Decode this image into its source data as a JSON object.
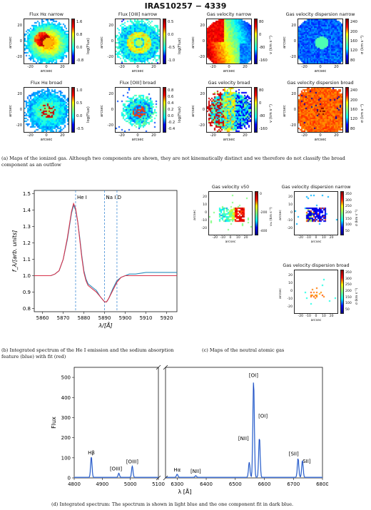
{
  "figure_title": "IRAS10257 − 4339",
  "panel_a": {
    "maps": [
      {
        "title": "Flux Hα narrow",
        "cbar_label": "log(Flux)",
        "cbar_ticks": [
          "1.6",
          "0.8",
          "0.0",
          "-0.8"
        ],
        "cmap": "jet",
        "style": "flux_big"
      },
      {
        "title": "Flux [OIII] narrow",
        "cbar_label": "log(Flux)",
        "cbar_ticks": [
          "0.5",
          "0.0",
          "-0.5",
          "-1.0"
        ],
        "cmap": "jet",
        "style": "flux_ring"
      },
      {
        "title": "Gas velocity narrow",
        "cbar_label": "v (km s⁻¹)",
        "cbar_ticks": [
          "80",
          "0",
          "-80",
          "-160"
        ],
        "cmap": "jet",
        "style": "vel_narrow"
      },
      {
        "title": "Gas velocity dispersion narrow",
        "cbar_label": "σ (km s⁻¹)",
        "cbar_ticks": [
          "240",
          "200",
          "160",
          "120",
          "80"
        ],
        "cmap": "jet",
        "style": "disp_narrow"
      },
      {
        "title": "Flux Hα broad",
        "cbar_label": "log(Flux)",
        "cbar_ticks": [
          "1.0",
          "0.5",
          "0.0",
          "-0.5"
        ],
        "cmap": "jet",
        "style": "flux_broad"
      },
      {
        "title": "Flux [OIII] broad",
        "cbar_label": "log(Flux)",
        "cbar_ticks": [
          "0.8",
          "0.6",
          "0.4",
          "0.2",
          "0.0",
          "-0.2",
          "-0.4"
        ],
        "cmap": "jet",
        "style": "flux_small"
      },
      {
        "title": "Gas velocity broad",
        "cbar_label": "v (km s⁻¹)",
        "cbar_ticks": [
          "80",
          "0",
          "-80",
          "-160"
        ],
        "cmap": "jet",
        "style": "vel_broad"
      },
      {
        "title": "Gas velocity dispersion broad",
        "cbar_label": "σ (km s⁻¹)",
        "cbar_ticks": [
          "240",
          "200",
          "160",
          "120",
          "80"
        ],
        "cmap": "jet",
        "style": "disp_broad"
      }
    ],
    "x_ticks": [
      "-20",
      "0",
      "20"
    ],
    "y_ticks": [
      "20",
      "0",
      "-20"
    ],
    "xlabel": "arcsec",
    "ylabel": "arcsec",
    "caption": "(a) Maps of the ionized gas. Although two components are shown, they are not kinematically distinct and we therefore do not classify the broad component as an outflow"
  },
  "panel_b": {
    "caption": "(b) Integrated spectrum of the He I emission and the sodium absorption feature (blue) with fit (red)",
    "line_labels": [
      "He I",
      "Na I D"
    ],
    "colors": {
      "data": "#2a8fbd",
      "fit": "#d8324a",
      "marker": "#2a7fd0"
    }
  },
  "panel_c": {
    "caption": "(c) Maps of the neutral atomic gas",
    "maps": [
      {
        "title": "Gas velocity v50",
        "cbar_label": "v₅₀ (km s⁻¹)",
        "cbar_ticks": [
          "0",
          "-200",
          "-400"
        ],
        "x_ticks": [
          "-20",
          "-10",
          "0",
          "10",
          "20"
        ],
        "y_ticks": [
          "20",
          "10",
          "0",
          "-10",
          "-20"
        ]
      },
      {
        "title": "Gas velocity dispersion narrow",
        "cbar_label": "σ (km s⁻¹)",
        "cbar_ticks": [
          "350",
          "300",
          "250",
          "200",
          "150",
          "100",
          "50"
        ],
        "x_ticks": [
          "-20",
          "-10",
          "0",
          "10",
          "20"
        ],
        "y_ticks": [
          "20",
          "10",
          "0",
          "-10",
          "-20"
        ]
      },
      {
        "title": "Gas velocity dispersion broad",
        "cbar_label": "σ (km s⁻¹)",
        "cbar_ticks": [
          "350",
          "300",
          "250",
          "200",
          "150",
          "100",
          "50"
        ],
        "x_ticks": [
          "-20",
          "-10",
          "0",
          "10",
          "20"
        ],
        "y_ticks": [
          "20",
          "10",
          "0",
          "-10",
          "-20"
        ]
      }
    ],
    "xlabel": "arcsec",
    "ylabel": "arcsec"
  },
  "panel_d": {
    "caption": "(d) Integrated spectrum: The spectrum is shown in light blue and the one component fit in dark blue.",
    "line_labels": [
      "Hβ",
      "[OIII]",
      "[OIII]",
      "Hα",
      "[NII]",
      "[NII]",
      "[OI]",
      "[OI]",
      "[SII]",
      "SII]"
    ]
  },
  "chart_data": [
    {
      "type": "line",
      "title": "",
      "xlabel": "λ/[Å]",
      "ylabel": "f_λ/[arb. units]",
      "xlim": [
        5856,
        5925
      ],
      "ylim": [
        0.78,
        1.52
      ],
      "x_ticks": [
        5860,
        5870,
        5880,
        5890,
        5900,
        5910,
        5920
      ],
      "y_ticks": [
        0.8,
        0.9,
        1.0,
        1.1,
        1.2,
        1.3,
        1.4,
        1.5
      ],
      "vlines": [
        {
          "x": 5876,
          "label": "He I"
        },
        {
          "x": 5890,
          "label": "Na I D"
        },
        {
          "x": 5896,
          "label": ""
        }
      ],
      "series": [
        {
          "x": [
            5856,
            5860,
            5864,
            5866,
            5868,
            5870,
            5872,
            5873,
            5874,
            5875,
            5876,
            5877,
            5878,
            5879,
            5880,
            5881,
            5882,
            5884,
            5886,
            5888,
            5890,
            5891,
            5892,
            5894,
            5896,
            5898,
            5900,
            5902,
            5905,
            5910,
            5915,
            5920,
            5925
          ],
          "y": [
            1.0,
            1.0,
            1.0,
            1.01,
            1.03,
            1.1,
            1.22,
            1.3,
            1.38,
            1.43,
            1.4,
            1.33,
            1.23,
            1.12,
            1.03,
            0.98,
            0.95,
            0.93,
            0.91,
            0.87,
            0.84,
            0.84,
            0.86,
            0.92,
            0.97,
            0.99,
            1.0,
            1.01,
            1.01,
            1.02,
            1.02,
            1.02,
            1.02
          ]
        },
        {
          "x": [
            5856,
            5860,
            5864,
            5866,
            5868,
            5870,
            5872,
            5873,
            5874,
            5875,
            5876,
            5877,
            5878,
            5879,
            5880,
            5881,
            5882,
            5884,
            5886,
            5888,
            5890,
            5891,
            5892,
            5894,
            5896,
            5898,
            5900,
            5902,
            5905,
            5910,
            5915,
            5920,
            5925
          ],
          "y": [
            1.0,
            1.0,
            1.0,
            1.01,
            1.03,
            1.1,
            1.23,
            1.31,
            1.39,
            1.44,
            1.41,
            1.33,
            1.22,
            1.11,
            1.02,
            0.97,
            0.94,
            0.92,
            0.9,
            0.87,
            0.84,
            0.84,
            0.86,
            0.91,
            0.96,
            0.99,
            1.0,
            1.0,
            1.0,
            1.0,
            1.0,
            1.0,
            1.0
          ]
        }
      ]
    },
    {
      "type": "line",
      "title": "",
      "xlabel": "λ [Å]",
      "ylabel": "Flux",
      "ylim": [
        0,
        550
      ],
      "y_ticks": [
        0,
        100,
        200,
        300,
        400,
        500
      ],
      "segments": [
        {
          "xlim": [
            4800,
            5100
          ],
          "x_ticks": [
            4800,
            4900,
            5000,
            5100
          ]
        },
        {
          "xlim": [
            6260,
            6800
          ],
          "x_ticks": [
            6300,
            6400,
            6500,
            6600,
            6700,
            6800
          ]
        }
      ],
      "lines": [
        {
          "x": 4861,
          "peak": 100,
          "label": "Hβ"
        },
        {
          "x": 4959,
          "peak": 20,
          "label": "[OIII]"
        },
        {
          "x": 5007,
          "peak": 55,
          "label": "[OIII]"
        },
        {
          "x": 6300,
          "peak": 15,
          "label": "[OI]"
        },
        {
          "x": 6364,
          "peak": 8,
          "label": "[OI]"
        },
        {
          "x": 6548,
          "peak": 75,
          "label": "[NII]"
        },
        {
          "x": 6563,
          "peak": 485,
          "label": "Hα"
        },
        {
          "x": 6583,
          "peak": 200,
          "label": "[NII]"
        },
        {
          "x": 6716,
          "peak": 95,
          "label": "[SII]"
        },
        {
          "x": 6731,
          "peak": 85,
          "label": "SII]"
        }
      ],
      "continuum": 3
    }
  ]
}
